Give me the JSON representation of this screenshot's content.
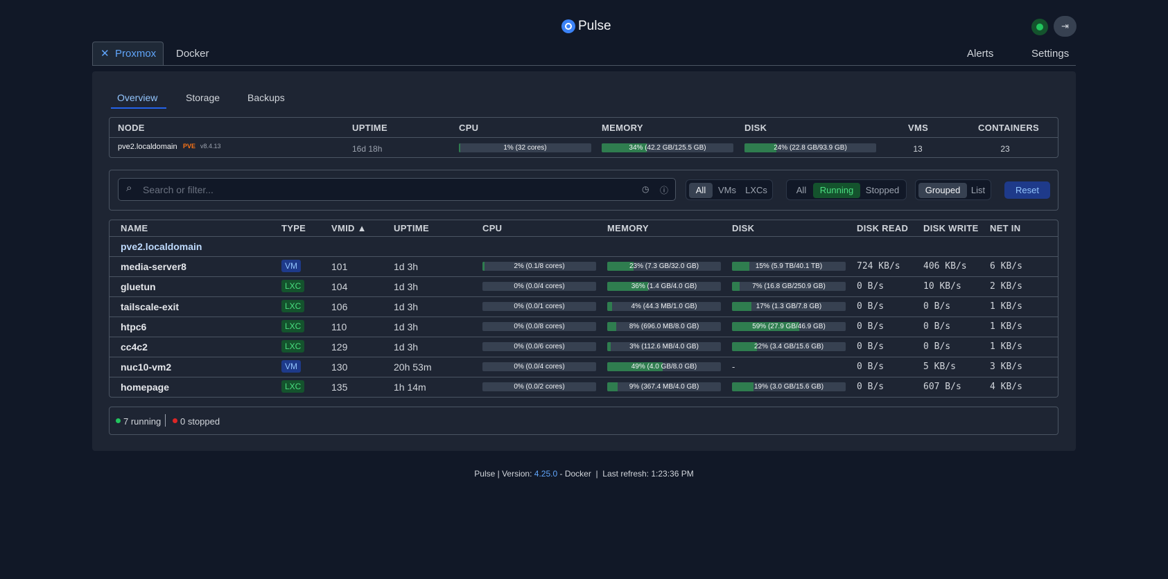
{
  "header": {
    "title": "Pulse"
  },
  "nav": {
    "tabs": [
      "Proxmox",
      "Docker"
    ],
    "right": [
      "Alerts",
      "Settings"
    ]
  },
  "subtabs": [
    "Overview",
    "Storage",
    "Backups"
  ],
  "node_table": {
    "columns": [
      "NODE",
      "UPTIME",
      "CPU",
      "MEMORY",
      "DISK",
      "VMS",
      "CONTAINERS"
    ],
    "rows": [
      {
        "node": "pve2.localdomain",
        "badge": "PVE",
        "version": "v8.4.13",
        "uptime": "16d 18h",
        "cpu": {
          "pct": 1,
          "label": "1% (32 cores)"
        },
        "memory": {
          "pct": 34,
          "label": "34% (42.2 GB/125.5 GB)"
        },
        "disk": {
          "pct": 24,
          "label": "24% (22.8 GB/93.9 GB)"
        },
        "vms": 13,
        "containers": 23
      }
    ]
  },
  "filters": {
    "search_placeholder": "Search or filter...",
    "type": [
      "All",
      "VMs",
      "LXCs"
    ],
    "status": [
      "All",
      "Running",
      "Stopped"
    ],
    "view": [
      "Grouped",
      "List"
    ],
    "reset": "Reset"
  },
  "guest_table": {
    "columns": [
      "NAME",
      "TYPE",
      "VMID ▲",
      "UPTIME",
      "CPU",
      "MEMORY",
      "DISK",
      "DISK READ",
      "DISK WRITE",
      "NET IN"
    ],
    "group": "pve2.localdomain",
    "rows": [
      {
        "name": "media-server8",
        "type": "VM",
        "vmid": 101,
        "uptime": "1d 3h",
        "cpu": {
          "pct": 2,
          "label": "2% (0.1/8 cores)"
        },
        "memory": {
          "pct": 23,
          "label": "23% (7.3 GB/32.0 GB)"
        },
        "disk": {
          "pct": 15,
          "label": "15% (5.9 TB/40.1 TB)"
        },
        "disk_read": "724 KB/s",
        "disk_write": "406 KB/s",
        "net_in": "6 KB/s"
      },
      {
        "name": "gluetun",
        "type": "LXC",
        "vmid": 104,
        "uptime": "1d 3h",
        "cpu": {
          "pct": 0,
          "label": "0% (0.0/4 cores)"
        },
        "memory": {
          "pct": 36,
          "label": "36% (1.4 GB/4.0 GB)"
        },
        "disk": {
          "pct": 7,
          "label": "7% (16.8 GB/250.9 GB)"
        },
        "disk_read": "0 B/s",
        "disk_write": "10 KB/s",
        "net_in": "2 KB/s"
      },
      {
        "name": "tailscale-exit",
        "type": "LXC",
        "vmid": 106,
        "uptime": "1d 3h",
        "cpu": {
          "pct": 0,
          "label": "0% (0.0/1 cores)"
        },
        "memory": {
          "pct": 4,
          "label": "4% (44.3 MB/1.0 GB)"
        },
        "disk": {
          "pct": 17,
          "label": "17% (1.3 GB/7.8 GB)"
        },
        "disk_read": "0 B/s",
        "disk_write": "0 B/s",
        "net_in": "1 KB/s"
      },
      {
        "name": "htpc6",
        "type": "LXC",
        "vmid": 110,
        "uptime": "1d 3h",
        "cpu": {
          "pct": 0,
          "label": "0% (0.0/8 cores)"
        },
        "memory": {
          "pct": 8,
          "label": "8% (696.0 MB/8.0 GB)"
        },
        "disk": {
          "pct": 59,
          "label": "59% (27.9 GB/46.9 GB)"
        },
        "disk_read": "0 B/s",
        "disk_write": "0 B/s",
        "net_in": "1 KB/s"
      },
      {
        "name": "cc4c2",
        "type": "LXC",
        "vmid": 129,
        "uptime": "1d 3h",
        "cpu": {
          "pct": 0,
          "label": "0% (0.0/6 cores)"
        },
        "memory": {
          "pct": 3,
          "label": "3% (112.6 MB/4.0 GB)"
        },
        "disk": {
          "pct": 22,
          "label": "22% (3.4 GB/15.6 GB)"
        },
        "disk_read": "0 B/s",
        "disk_write": "0 B/s",
        "net_in": "1 KB/s"
      },
      {
        "name": "nuc10-vm2",
        "type": "VM",
        "vmid": 130,
        "uptime": "20h 53m",
        "cpu": {
          "pct": 0,
          "label": "0% (0.0/4 cores)"
        },
        "memory": {
          "pct": 49,
          "label": "49% (4.0 GB/8.0 GB)"
        },
        "disk": "-",
        "disk_read": "0 B/s",
        "disk_write": "5 KB/s",
        "net_in": "3 KB/s"
      },
      {
        "name": "homepage",
        "type": "LXC",
        "vmid": 135,
        "uptime": "1h 14m",
        "cpu": {
          "pct": 0,
          "label": "0% (0.0/2 cores)"
        },
        "memory": {
          "pct": 9,
          "label": "9% (367.4 MB/4.0 GB)"
        },
        "disk": {
          "pct": 19,
          "label": "19% (3.0 GB/15.6 GB)"
        },
        "disk_read": "0 B/s",
        "disk_write": "607 B/s",
        "net_in": "4 KB/s"
      }
    ]
  },
  "summary": {
    "running": "7 running",
    "stopped": "0 stopped"
  },
  "footer": {
    "prefix": "Pulse | Version:",
    "version": "4.25.0",
    "suffix": "- Docker  |  Last refresh: 1:23:36 PM"
  }
}
